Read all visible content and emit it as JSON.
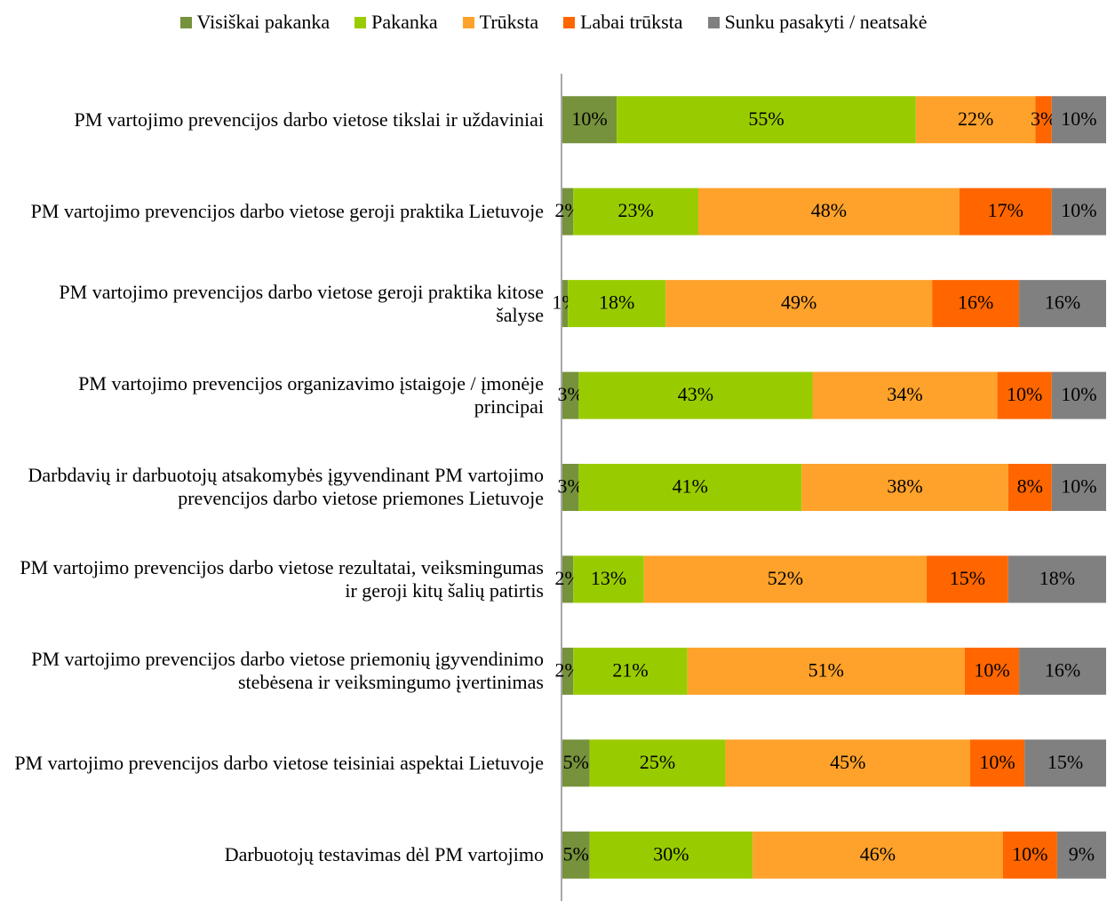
{
  "chart_data": {
    "type": "stacked_bar_horizontal",
    "categories": [
      "PM vartojimo prevencijos darbo vietose tikslai ir uždaviniai",
      "PM vartojimo prevencijos darbo vietose geroji praktika Lietuvoje",
      "PM vartojimo prevencijos darbo vietose geroji praktika kitose šalyse",
      "PM vartojimo prevencijos organizavimo įstaigoje / įmonėje principai",
      "Darbdavių ir darbuotojų atsakomybės įgyvendinant PM vartojimo prevencijos darbo vietose priemones Lietuvoje",
      "PM vartojimo prevencijos darbo vietose rezultatai, veiksmingumas ir geroji kitų šalių patirtis",
      "PM vartojimo prevencijos darbo vietose priemonių įgyvendinimo stebėsena ir veiksmingumo įvertinimas",
      "PM vartojimo prevencijos darbo vietose teisiniai aspektai Lietuvoje",
      "Darbuotojų testavimas dėl PM vartojimo"
    ],
    "xlim": [
      0,
      100
    ],
    "series": [
      {
        "name": "Visiškai pakanka",
        "color": "#76923c",
        "values": [
          10,
          2,
          1,
          3,
          3,
          2,
          2,
          5,
          5
        ],
        "value_labels": [
          "10%",
          "2%",
          "1%",
          "3%",
          "3%",
          "2%",
          "2%",
          "5%",
          "5%"
        ]
      },
      {
        "name": "Pakanka",
        "color": "#99cc00",
        "values": [
          55,
          23,
          18,
          43,
          41,
          13,
          21,
          25,
          30
        ],
        "value_labels": [
          "55%",
          "23%",
          "18%",
          "43%",
          "41%",
          "13%",
          "21%",
          "25%",
          "30%"
        ]
      },
      {
        "name": "Trūksta",
        "color": "#ffa22b",
        "values": [
          22,
          48,
          49,
          34,
          38,
          52,
          51,
          45,
          46
        ],
        "value_labels": [
          "22%",
          "48%",
          "49%",
          "34%",
          "38%",
          "52%",
          "51%",
          "45%",
          "46%"
        ]
      },
      {
        "name": "Labai trūksta",
        "color": "#ff6600",
        "values": [
          3,
          17,
          16,
          10,
          8,
          15,
          10,
          10,
          10
        ],
        "value_labels": [
          "3%",
          "17%",
          "16%",
          "10%",
          "8%",
          "15%",
          "10%",
          "10%",
          "10%"
        ]
      },
      {
        "name": "Sunku pasakyti / neatsakė",
        "color": "#808080",
        "values": [
          10,
          10,
          16,
          10,
          10,
          18,
          16,
          15,
          9
        ],
        "value_labels": [
          "10%",
          "10%",
          "16%",
          "10%",
          "10%",
          "18%",
          "16%",
          "15%",
          "9%"
        ]
      }
    ]
  }
}
